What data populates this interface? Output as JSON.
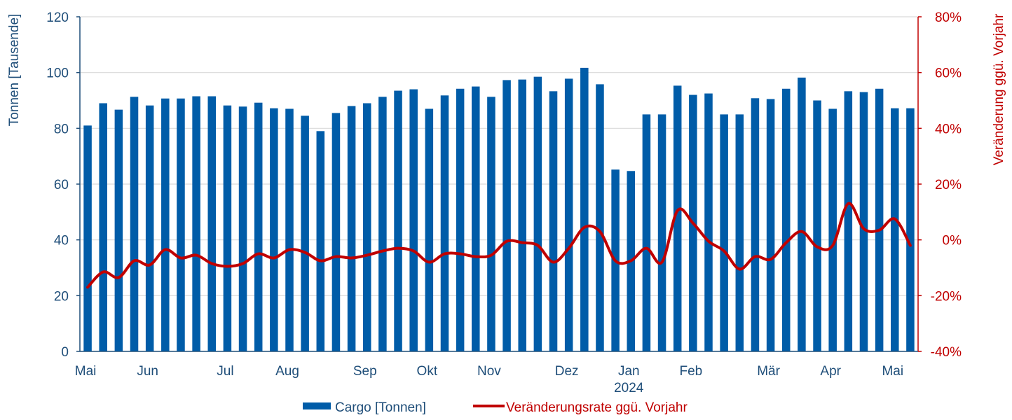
{
  "chart_data": {
    "type": "bar",
    "left_axis": {
      "title": "Tonnen [Tausende]",
      "ylim": [
        0,
        120
      ],
      "ticks": [
        "0",
        "20",
        "40",
        "60",
        "80",
        "100",
        "120"
      ],
      "tick_values": [
        0,
        20,
        40,
        60,
        80,
        100,
        120
      ]
    },
    "right_axis": {
      "title": "Veränderung ggü. Vorjahr",
      "ylim": [
        -40,
        80
      ],
      "ticks": [
        "-40%",
        "-20%",
        "0%",
        "20%",
        "40%",
        "60%",
        "80%"
      ],
      "tick_values": [
        -40,
        -20,
        0,
        20,
        40,
        60,
        80
      ]
    },
    "x_month_labels": [
      {
        "label": "Mai",
        "index": 0
      },
      {
        "label": "Jun",
        "index": 4
      },
      {
        "label": "Jul",
        "index": 9
      },
      {
        "label": "Aug",
        "index": 13
      },
      {
        "label": "Sep",
        "index": 18
      },
      {
        "label": "Okt",
        "index": 22
      },
      {
        "label": "Nov",
        "index": 26
      },
      {
        "label": "Dez",
        "index": 31
      },
      {
        "label": "Jan",
        "index": 35
      },
      {
        "label": "Feb",
        "index": 39
      },
      {
        "label": "Mär",
        "index": 44
      },
      {
        "label": "Apr",
        "index": 48
      },
      {
        "label": "Mai",
        "index": 52
      }
    ],
    "x_year_label": {
      "label": "2024",
      "index": 35
    },
    "grid": true,
    "legend_position": "bottom",
    "series": [
      {
        "name": "Cargo [Tonnen]",
        "type": "bar",
        "axis": "left",
        "color": "#005ca8",
        "values": [
          81,
          89,
          86.7,
          91.3,
          88.2,
          90.7,
          90.7,
          91.5,
          91.5,
          88.2,
          87.8,
          89.2,
          87.2,
          87,
          84.5,
          79,
          85.5,
          88,
          89,
          91.3,
          93.5,
          94,
          87,
          91.8,
          94.2,
          95,
          91.3,
          97.3,
          97.5,
          98.5,
          93.3,
          97.8,
          101.7,
          95.8,
          65.2,
          64.7,
          85,
          85,
          95.3,
          92,
          92.5,
          85,
          85,
          90.8,
          90.5,
          94.2,
          98.2,
          90,
          87,
          93.3,
          93,
          94.2,
          87.2,
          87.2
        ]
      },
      {
        "name": "Veränderungsrate ggü. Vorjahr",
        "type": "line",
        "axis": "right",
        "color": "#c00000",
        "values": [
          -17,
          -11.5,
          -13.5,
          -7.5,
          -9,
          -3.5,
          -6.5,
          -5.5,
          -8.5,
          -9.5,
          -8.5,
          -5,
          -6.5,
          -3.5,
          -4.5,
          -7.5,
          -6,
          -6.5,
          -5.5,
          -4,
          -3,
          -4,
          -8,
          -5,
          -5,
          -6,
          -5.5,
          -0.5,
          -1,
          -2,
          -8,
          -3,
          4.5,
          3,
          -7.5,
          -7.5,
          -3,
          -8,
          10.5,
          6,
          -0.5,
          -4,
          -10.5,
          -6,
          -7,
          -1,
          3,
          -2.5,
          -2,
          13,
          4,
          3.5,
          7.5,
          -2
        ]
      }
    ]
  }
}
